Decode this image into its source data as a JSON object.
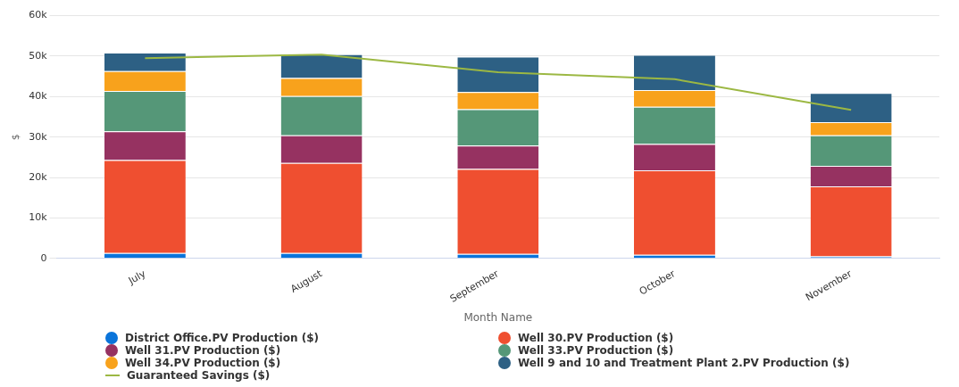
{
  "chart_data": {
    "type": "bar",
    "stacked": true,
    "xlabel": "Month Name",
    "ylabel": "$",
    "categories": [
      "July",
      "August",
      "September",
      "October",
      "November"
    ],
    "ylim": [
      0,
      60000
    ],
    "yticks": [
      {
        "value": 0,
        "label": "0"
      },
      {
        "value": 10000,
        "label": "10k"
      },
      {
        "value": 20000,
        "label": "20k"
      },
      {
        "value": 30000,
        "label": "30k"
      },
      {
        "value": 40000,
        "label": "40k"
      },
      {
        "value": 50000,
        "label": "50k"
      },
      {
        "value": 60000,
        "label": "60k"
      }
    ],
    "grid": "y",
    "legend": "bottom",
    "series": [
      {
        "name": "District Office.PV Production ($)",
        "color": "#0a74da",
        "values": [
          1300,
          1300,
          1100,
          900,
          500
        ]
      },
      {
        "name": "Well 30.PV Production ($)",
        "color": "#ef4f30",
        "values": [
          23000,
          22300,
          21000,
          20900,
          17300
        ]
      },
      {
        "name": "Well 31.PV Production ($)",
        "color": "#963261",
        "values": [
          7100,
          6800,
          5800,
          6500,
          5100
        ]
      },
      {
        "name": "Well 33.PV Production ($)",
        "color": "#559778",
        "values": [
          10000,
          9700,
          9000,
          9200,
          7500
        ]
      },
      {
        "name": "Well 34.PV Production ($)",
        "color": "#f8a21c",
        "values": [
          4900,
          4500,
          4200,
          4100,
          3300
        ]
      },
      {
        "name": "Well 9 and 10 and Treatment Plant 2.PV Production ($)",
        "color": "#2d6084",
        "values": [
          4600,
          5900,
          8800,
          8700,
          7200
        ]
      },
      {
        "name": "Guaranteed Savings ($)",
        "type": "line",
        "color": "#9cb843",
        "values": [
          49500,
          50400,
          46000,
          44300,
          36700
        ]
      }
    ]
  }
}
